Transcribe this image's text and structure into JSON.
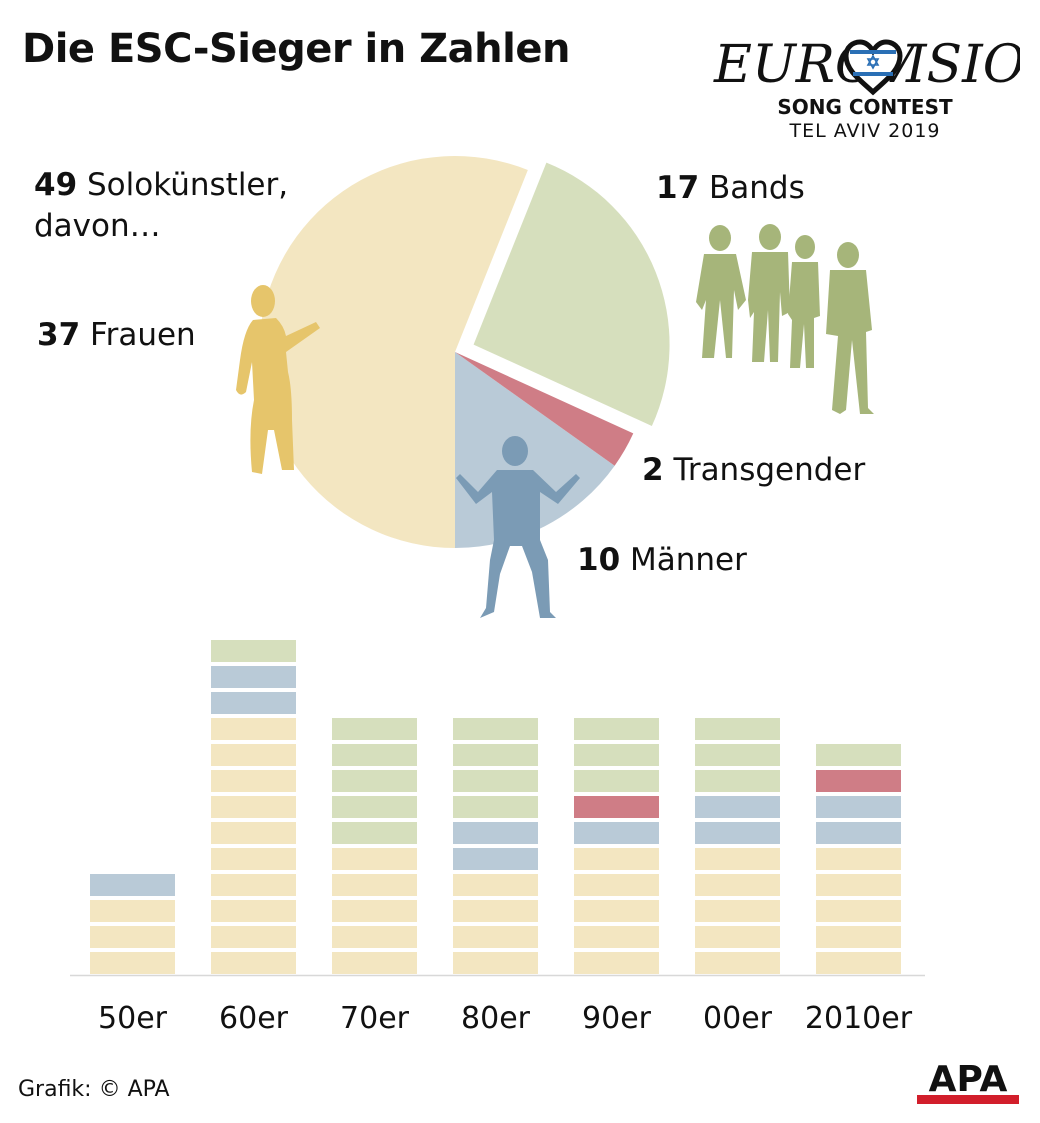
{
  "title": "Die ESC-Sieger in Zahlen",
  "logo": {
    "wordmark_left": "EUROV",
    "wordmark_right": "ISION",
    "line1": "SONG CONTEST",
    "line2": "TEL AVIV 2019"
  },
  "credit": "Grafik: © APA",
  "apa_logo": "APA",
  "colors": {
    "frauen": "#f3e6c1",
    "maenner": "#b9cad7",
    "transgender": "#cf7d86",
    "bands": "#d6dfbd",
    "frauen_figure": "#e6c56b",
    "maenner_figure": "#7b9bb5",
    "bands_figure": "#a6b57a"
  },
  "chart_data": [
    {
      "type": "pie",
      "slices": [
        {
          "key": "frauen",
          "value": 37,
          "num": "37",
          "label": "Frauen"
        },
        {
          "key": "maenner",
          "value": 10,
          "num": "10",
          "label": "Männer"
        },
        {
          "key": "transgender",
          "value": 2,
          "num": "2",
          "label": "Transgender"
        },
        {
          "key": "bands",
          "value": 17,
          "num": "17",
          "label": "Bands"
        }
      ],
      "group_label": {
        "num": "49",
        "text1": "Solokünstler,",
        "text2": "davon…"
      },
      "exploded": "bands"
    },
    {
      "type": "bar",
      "stacked": true,
      "categories": [
        "50er",
        "60er",
        "70er",
        "80er",
        "90er",
        "00er",
        "2010er"
      ],
      "series": [
        {
          "key": "frauen",
          "values": [
            3,
            10,
            5,
            4,
            5,
            5,
            5
          ]
        },
        {
          "key": "maenner",
          "values": [
            1,
            2,
            0,
            2,
            1,
            2,
            2
          ]
        },
        {
          "key": "transgender",
          "values": [
            0,
            0,
            0,
            0,
            1,
            0,
            1
          ]
        },
        {
          "key": "bands",
          "values": [
            0,
            1,
            5,
            4,
            3,
            3,
            1
          ]
        }
      ]
    }
  ]
}
